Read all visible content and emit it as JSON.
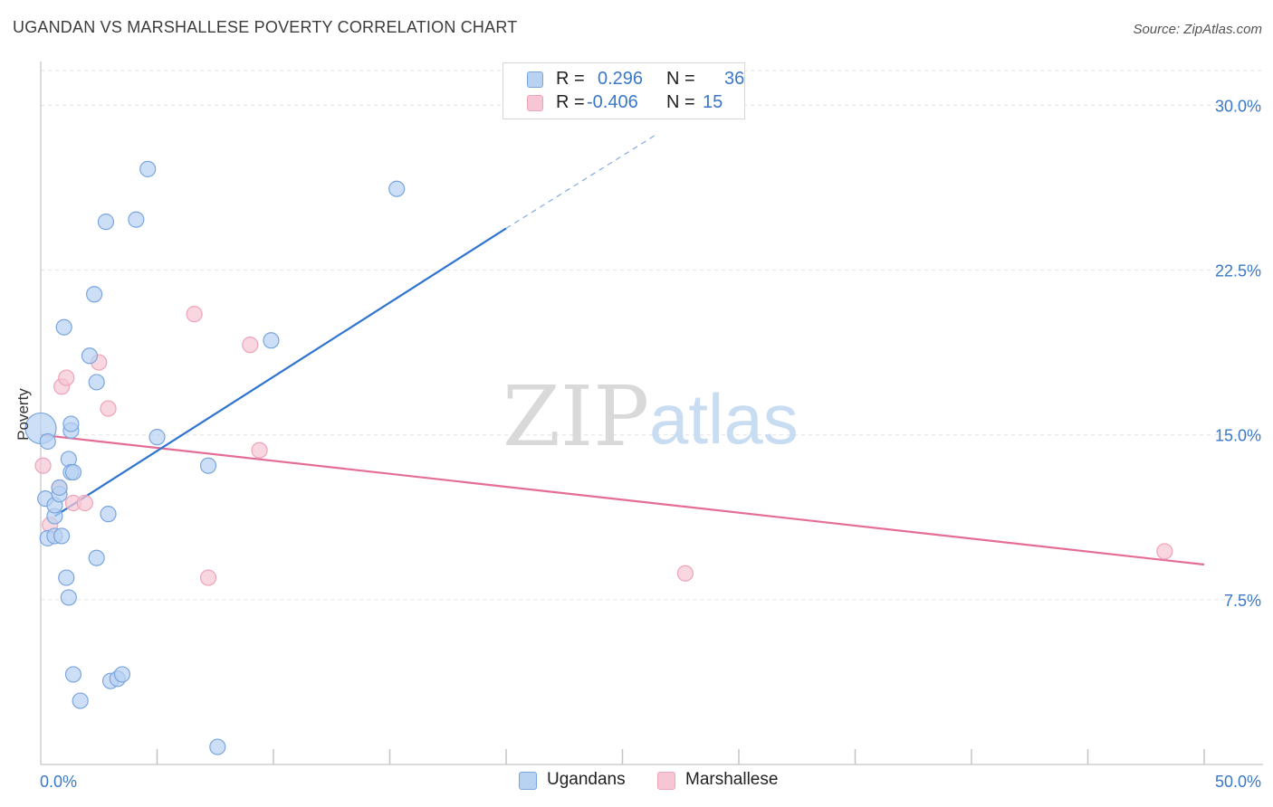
{
  "header": {
    "title": "UGANDAN VS MARSHALLESE POVERTY CORRELATION CHART",
    "source": "Source: ZipAtlas.com"
  },
  "watermark": {
    "zip": "ZIP",
    "atlas": "atlas"
  },
  "legend": {
    "rows": [
      {
        "r_label": "R =",
        "r_value": "0.296",
        "n_label": "N =",
        "n_value": "36"
      },
      {
        "r_label": "R =",
        "r_value": "-0.406",
        "n_label": "N =",
        "n_value": "15"
      }
    ],
    "bottom": [
      "Ugandans",
      "Marshallese"
    ]
  },
  "colors": {
    "ugandan_fill": "#b8d2f2",
    "ugandan_stroke": "#7aa6dd",
    "ugandan_line": "#2f74cf",
    "marshallese_fill": "#f7c6d4",
    "marshallese_stroke": "#eea3b9",
    "marshallese_line": "#e46d98",
    "tick_label": "#3a78c9",
    "grid": "#e2e2e2"
  },
  "chart_data": {
    "type": "scatter",
    "title": "UGANDAN VS MARSHALLESE POVERTY CORRELATION CHART",
    "xlabel": "",
    "ylabel": "Poverty",
    "xlim": [
      0,
      50
    ],
    "ylim": [
      0,
      31.5
    ],
    "x_tick_labels": [
      "0.0%",
      "50.0%"
    ],
    "y_ticks": [
      7.5,
      15.0,
      22.5,
      30.0
    ],
    "y_tick_labels": [
      "7.5%",
      "15.0%",
      "22.5%",
      "30.0%"
    ],
    "grid": true,
    "series": [
      {
        "name": "Ugandans",
        "r": 0.296,
        "n": 36,
        "trend": {
          "x": [
            0.6,
            20.0
          ],
          "y": [
            11.3,
            24.4
          ],
          "dashed_to": [
            26.5,
            28.7
          ]
        },
        "points": [
          {
            "x": 0.0,
            "y": 15.3,
            "big": true
          },
          {
            "x": 0.3,
            "y": 14.7
          },
          {
            "x": 0.2,
            "y": 12.1
          },
          {
            "x": 0.6,
            "y": 11.3
          },
          {
            "x": 0.3,
            "y": 10.3
          },
          {
            "x": 0.6,
            "y": 10.4
          },
          {
            "x": 0.9,
            "y": 10.4
          },
          {
            "x": 0.6,
            "y": 11.8
          },
          {
            "x": 0.8,
            "y": 12.3
          },
          {
            "x": 0.8,
            "y": 12.6
          },
          {
            "x": 1.1,
            "y": 8.5
          },
          {
            "x": 1.0,
            "y": 19.9
          },
          {
            "x": 1.2,
            "y": 7.6
          },
          {
            "x": 1.3,
            "y": 15.2
          },
          {
            "x": 1.2,
            "y": 13.9
          },
          {
            "x": 1.3,
            "y": 13.3
          },
          {
            "x": 1.3,
            "y": 15.5
          },
          {
            "x": 1.4,
            "y": 13.3
          },
          {
            "x": 2.1,
            "y": 18.6
          },
          {
            "x": 2.3,
            "y": 21.4
          },
          {
            "x": 2.4,
            "y": 17.4
          },
          {
            "x": 2.4,
            "y": 9.4
          },
          {
            "x": 2.8,
            "y": 24.7
          },
          {
            "x": 2.9,
            "y": 11.4
          },
          {
            "x": 4.6,
            "y": 27.1
          },
          {
            "x": 4.1,
            "y": 24.8
          },
          {
            "x": 5.0,
            "y": 14.9
          },
          {
            "x": 7.2,
            "y": 13.6
          },
          {
            "x": 9.9,
            "y": 19.3
          },
          {
            "x": 15.3,
            "y": 26.2
          },
          {
            "x": 1.4,
            "y": 4.1
          },
          {
            "x": 1.7,
            "y": 2.9
          },
          {
            "x": 3.0,
            "y": 3.8
          },
          {
            "x": 3.3,
            "y": 3.9
          },
          {
            "x": 3.5,
            "y": 4.1
          },
          {
            "x": 7.6,
            "y": 0.8
          }
        ]
      },
      {
        "name": "Marshallese",
        "r": -0.406,
        "n": 15,
        "trend": {
          "x": [
            0.0,
            50.0
          ],
          "y": [
            15.0,
            9.1
          ]
        },
        "points": [
          {
            "x": 0.1,
            "y": 13.6
          },
          {
            "x": 0.4,
            "y": 10.9
          },
          {
            "x": 0.8,
            "y": 12.6
          },
          {
            "x": 0.9,
            "y": 17.2
          },
          {
            "x": 1.1,
            "y": 17.6
          },
          {
            "x": 1.4,
            "y": 11.9
          },
          {
            "x": 1.9,
            "y": 11.9
          },
          {
            "x": 2.5,
            "y": 18.3
          },
          {
            "x": 2.9,
            "y": 16.2
          },
          {
            "x": 6.6,
            "y": 20.5
          },
          {
            "x": 7.2,
            "y": 8.5
          },
          {
            "x": 9.0,
            "y": 19.1
          },
          {
            "x": 9.4,
            "y": 14.3
          },
          {
            "x": 27.7,
            "y": 8.7
          },
          {
            "x": 48.3,
            "y": 9.7
          }
        ]
      }
    ]
  }
}
